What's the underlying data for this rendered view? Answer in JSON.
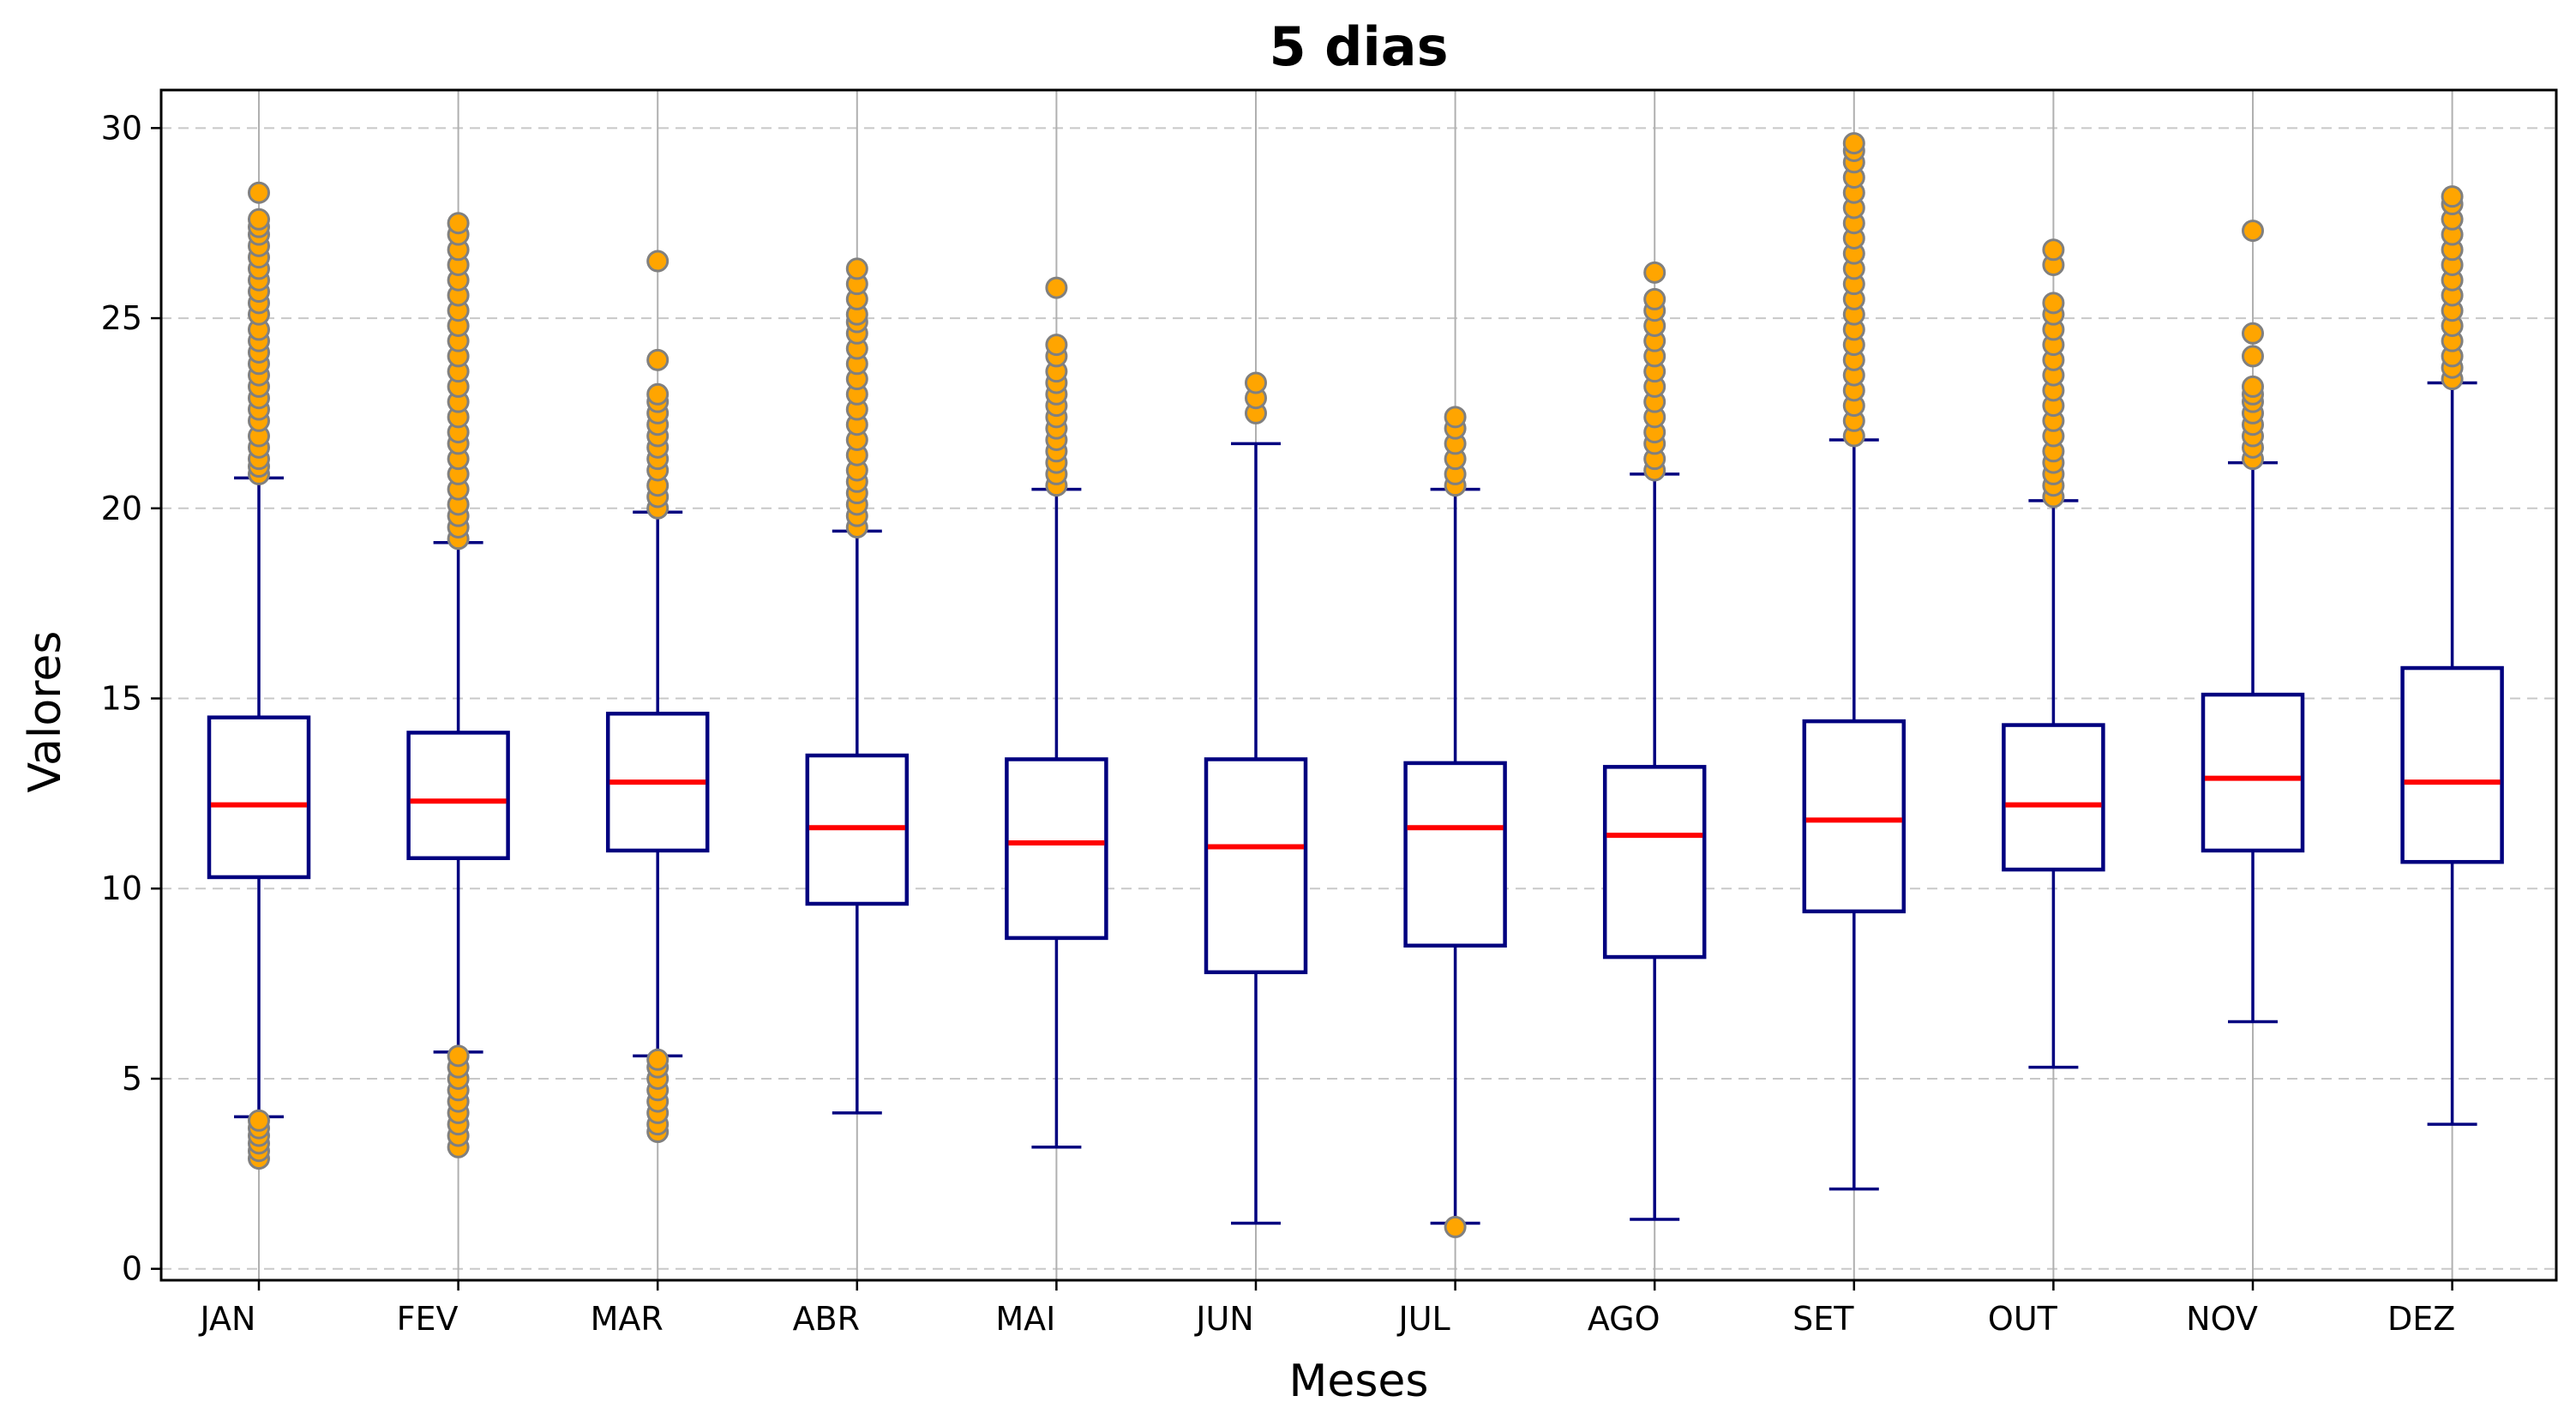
{
  "chart_data": {
    "type": "box",
    "title": "5 dias",
    "xlabel": "Meses",
    "ylabel": "Valores",
    "ylim": [
      -0.3,
      31.0
    ],
    "yticks": [
      0,
      5,
      10,
      15,
      20,
      25,
      30
    ],
    "grid": {
      "horizontal": "dashed",
      "vertical": "solid"
    },
    "colors": {
      "box": "#00007f",
      "median": "#ff0000",
      "outlier_fill": "#ffa500",
      "outlier_edge": "#808080",
      "grid_h": "#c8c8c8",
      "grid_v": "#b0b0b0"
    },
    "categories": [
      "JAN",
      "FEV",
      "MAR",
      "ABR",
      "MAI",
      "JUN",
      "JUL",
      "AGO",
      "SET",
      "OUT",
      "NOV",
      "DEZ"
    ],
    "boxes": [
      {
        "label": "JAN",
        "whisker_low": 4.0,
        "q1": 10.3,
        "median": 12.2,
        "q3": 14.5,
        "whisker_high": 20.8,
        "outliers": [
          2.9,
          3.1,
          3.3,
          3.5,
          3.7,
          3.9,
          20.9,
          21.1,
          21.3,
          21.6,
          21.9,
          22.3,
          22.6,
          22.9,
          23.2,
          23.5,
          23.8,
          24.1,
          24.4,
          24.7,
          25.1,
          25.4,
          25.7,
          26.0,
          26.3,
          26.6,
          26.9,
          27.2,
          27.4,
          27.6,
          28.3
        ]
      },
      {
        "label": "FEV",
        "whisker_low": 5.7,
        "q1": 10.8,
        "median": 12.3,
        "q3": 14.1,
        "whisker_high": 19.1,
        "outliers": [
          3.2,
          3.5,
          3.8,
          4.1,
          4.4,
          4.7,
          5.0,
          5.3,
          5.6,
          19.2,
          19.5,
          19.8,
          20.1,
          20.5,
          20.9,
          21.3,
          21.7,
          22.0,
          22.4,
          22.8,
          23.2,
          23.6,
          24.0,
          24.4,
          24.8,
          25.2,
          25.6,
          26.0,
          26.4,
          26.8,
          27.2,
          27.5
        ]
      },
      {
        "label": "MAR",
        "whisker_low": 5.6,
        "q1": 11.0,
        "median": 12.8,
        "q3": 14.6,
        "whisker_high": 19.9,
        "outliers": [
          3.6,
          3.8,
          4.1,
          4.4,
          4.7,
          5.0,
          5.3,
          5.5,
          20.0,
          20.3,
          20.6,
          21.0,
          21.3,
          21.6,
          21.9,
          22.2,
          22.5,
          22.8,
          23.0,
          23.9,
          26.5
        ]
      },
      {
        "label": "ABR",
        "whisker_low": 4.1,
        "q1": 9.6,
        "median": 11.6,
        "q3": 13.5,
        "whisker_high": 19.4,
        "outliers": [
          19.5,
          19.8,
          20.1,
          20.4,
          20.7,
          21.0,
          21.4,
          21.8,
          22.2,
          22.6,
          23.0,
          23.4,
          23.8,
          24.2,
          24.6,
          24.9,
          25.1,
          25.5,
          25.9,
          26.3
        ]
      },
      {
        "label": "MAI",
        "whisker_low": 3.2,
        "q1": 8.7,
        "median": 11.2,
        "q3": 13.4,
        "whisker_high": 20.5,
        "outliers": [
          20.6,
          20.9,
          21.2,
          21.5,
          21.8,
          22.1,
          22.4,
          22.7,
          23.0,
          23.3,
          23.6,
          24.0,
          24.3,
          25.8
        ]
      },
      {
        "label": "JUN",
        "whisker_low": 1.2,
        "q1": 7.8,
        "median": 11.1,
        "q3": 13.4,
        "whisker_high": 21.7,
        "outliers": [
          22.5,
          22.9,
          23.3
        ]
      },
      {
        "label": "JUL",
        "whisker_low": 1.2,
        "q1": 8.5,
        "median": 11.6,
        "q3": 13.3,
        "whisker_high": 20.5,
        "outliers": [
          1.1,
          20.6,
          20.9,
          21.3,
          21.7,
          22.1,
          22.4
        ]
      },
      {
        "label": "AGO",
        "whisker_low": 1.3,
        "q1": 8.2,
        "median": 11.4,
        "q3": 13.2,
        "whisker_high": 20.9,
        "outliers": [
          21.0,
          21.3,
          21.7,
          22.0,
          22.4,
          22.8,
          23.2,
          23.6,
          24.0,
          24.4,
          24.8,
          25.2,
          25.5,
          26.2
        ]
      },
      {
        "label": "SET",
        "whisker_low": 2.1,
        "q1": 9.4,
        "median": 11.8,
        "q3": 14.4,
        "whisker_high": 21.8,
        "outliers": [
          21.9,
          22.3,
          22.7,
          23.1,
          23.5,
          23.9,
          24.3,
          24.7,
          25.1,
          25.5,
          25.9,
          26.3,
          26.7,
          27.1,
          27.5,
          27.9,
          28.3,
          28.7,
          29.1,
          29.4,
          29.6
        ]
      },
      {
        "label": "OUT",
        "whisker_low": 5.3,
        "q1": 10.5,
        "median": 12.2,
        "q3": 14.3,
        "whisker_high": 20.2,
        "outliers": [
          20.3,
          20.6,
          20.9,
          21.2,
          21.5,
          21.9,
          22.3,
          22.7,
          23.1,
          23.5,
          23.9,
          24.3,
          24.7,
          25.1,
          25.4,
          26.4,
          26.8
        ]
      },
      {
        "label": "NOV",
        "whisker_low": 6.5,
        "q1": 11.0,
        "median": 12.9,
        "q3": 15.1,
        "whisker_high": 21.2,
        "outliers": [
          21.3,
          21.6,
          21.9,
          22.2,
          22.5,
          22.8,
          23.0,
          23.2,
          24.0,
          24.6,
          27.3
        ]
      },
      {
        "label": "DEZ",
        "whisker_low": 3.8,
        "q1": 10.7,
        "median": 12.8,
        "q3": 15.8,
        "whisker_high": 23.3,
        "outliers": [
          23.4,
          23.7,
          24.0,
          24.4,
          24.8,
          25.2,
          25.6,
          26.0,
          26.4,
          26.8,
          27.2,
          27.6,
          28.0,
          28.2
        ]
      }
    ]
  }
}
